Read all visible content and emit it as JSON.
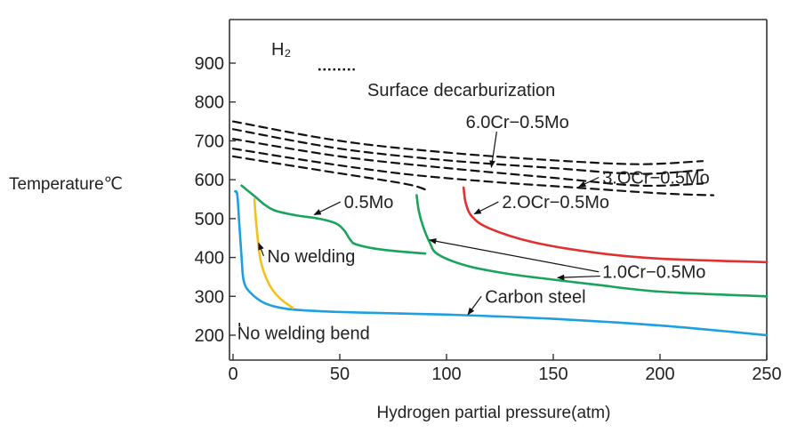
{
  "chart_data": {
    "type": "line",
    "title": "",
    "xlabel": "Hydrogen partial pressure(atm)",
    "ylabel": "Temperature℃",
    "xlim": [
      0,
      250
    ],
    "ylim": [
      160,
      1000
    ],
    "xticks": [
      "0",
      "50",
      "100",
      "150",
      "200",
      "250"
    ],
    "yticks": [
      "200",
      "300",
      "400",
      "500",
      "600",
      "700",
      "800",
      "900"
    ],
    "x_tick_values": [
      0,
      50,
      100,
      150,
      200,
      250
    ],
    "y_tick_values": [
      200,
      300,
      400,
      500,
      600,
      700,
      800,
      900
    ],
    "legend": {
      "label": "Surface decarburization",
      "style": "dotted"
    },
    "gas_label": "H₂",
    "grid": false,
    "colors": {
      "carbon_steel": "#1e9fe0",
      "no_welding": "#f2c21b",
      "mo_05": "#1aa35a",
      "cr_10": "#1aa35a",
      "cr_20": "#e23030",
      "dashed": "#111111"
    },
    "series": [
      {
        "name": "Carbon steel",
        "style": "solid",
        "color_key": "carbon_steel",
        "points": [
          [
            1,
            570
          ],
          [
            2,
            560
          ],
          [
            3,
            480
          ],
          [
            4,
            400
          ],
          [
            5,
            340
          ],
          [
            8,
            310
          ],
          [
            15,
            282
          ],
          [
            25,
            268
          ],
          [
            40,
            262
          ],
          [
            60,
            258
          ],
          [
            100,
            253
          ],
          [
            150,
            242
          ],
          [
            200,
            225
          ],
          [
            250,
            200
          ]
        ]
      },
      {
        "name": "No welding",
        "style": "solid",
        "color_key": "no_welding",
        "points": [
          [
            10,
            550
          ],
          [
            11,
            480
          ],
          [
            13,
            390
          ],
          [
            17,
            330
          ],
          [
            22,
            295
          ],
          [
            28,
            270
          ]
        ]
      },
      {
        "name": "0.5Mo",
        "style": "solid",
        "color_key": "mo_05",
        "points": [
          [
            4,
            585
          ],
          [
            10,
            558
          ],
          [
            15,
            535
          ],
          [
            20,
            520
          ],
          [
            30,
            508
          ],
          [
            40,
            500
          ],
          [
            48,
            488
          ],
          [
            52,
            470
          ],
          [
            55,
            445
          ],
          [
            58,
            433
          ],
          [
            70,
            420
          ],
          [
            90,
            410
          ]
        ]
      },
      {
        "name": "1.0Cr-0.5Mo",
        "style": "solid",
        "color_key": "cr_10",
        "points": [
          [
            86,
            560
          ],
          [
            87,
            520
          ],
          [
            89,
            480
          ],
          [
            92,
            440
          ],
          [
            96,
            408
          ],
          [
            110,
            378
          ],
          [
            130,
            357
          ],
          [
            150,
            343
          ],
          [
            170,
            330
          ],
          [
            200,
            312
          ],
          [
            250,
            300
          ]
        ]
      },
      {
        "name": "2.0Cr-0.5Mo",
        "style": "solid",
        "color_key": "cr_20",
        "points": [
          [
            108,
            580
          ],
          [
            109,
            540
          ],
          [
            112,
            505
          ],
          [
            120,
            475
          ],
          [
            140,
            440
          ],
          [
            170,
            412
          ],
          [
            200,
            397
          ],
          [
            250,
            388
          ]
        ]
      },
      {
        "name": "6.0Cr-0.5Mo",
        "style": "dashed",
        "color_key": "dashed",
        "points": [
          [
            0,
            750
          ],
          [
            50,
            700
          ],
          [
            100,
            670
          ],
          [
            150,
            650
          ],
          [
            190,
            640
          ],
          [
            220,
            648
          ]
        ]
      },
      {
        "name": "3.0Cr-0.5Mo",
        "style": "dashed",
        "color_key": "dashed",
        "points": [
          [
            0,
            730
          ],
          [
            50,
            680
          ],
          [
            100,
            650
          ],
          [
            150,
            630
          ],
          [
            190,
            615
          ],
          [
            220,
            625
          ]
        ]
      },
      {
        "name": "",
        "style": "dashed",
        "color_key": "dashed",
        "points": [
          [
            0,
            705
          ],
          [
            50,
            660
          ],
          [
            100,
            630
          ],
          [
            150,
            605
          ],
          [
            190,
            585
          ],
          [
            220,
            590
          ]
        ]
      },
      {
        "name": "",
        "style": "dashed",
        "color_key": "dashed",
        "points": [
          [
            0,
            680
          ],
          [
            40,
            645
          ],
          [
            80,
            615
          ],
          [
            120,
            595
          ],
          [
            160,
            580
          ],
          [
            200,
            565
          ],
          [
            225,
            560
          ]
        ]
      },
      {
        "name": "",
        "style": "dashed",
        "color_key": "dashed",
        "points": [
          [
            0,
            660
          ],
          [
            40,
            625
          ],
          [
            80,
            590
          ],
          [
            90,
            575
          ]
        ]
      }
    ],
    "annotations": [
      {
        "text": "6.0Cr−0.5Mo",
        "x": 109,
        "y": 733,
        "arrow_to": [
          121,
          632
        ]
      },
      {
        "text": "3.OCr−0.5Mo",
        "x": 173,
        "y": 590,
        "arrow_to": [
          162,
          582
        ]
      },
      {
        "text": "2.OCr−0.5Mo",
        "x": 126,
        "y": 527,
        "arrow_to": [
          113,
          512
        ]
      },
      {
        "text": "0.5Mo",
        "x": 52,
        "y": 527,
        "arrow_to": [
          38,
          510
        ]
      },
      {
        "text": "1.0Cr−0.5Mo",
        "x": 173,
        "y": 347,
        "arrow_to": [
          92,
          445
        ]
      },
      {
        "text": "No welding",
        "x": 16,
        "y": 388,
        "arrow_to": [
          12,
          437
        ]
      },
      {
        "text": "Carbon steel",
        "x": 118,
        "y": 284,
        "arrow_to": [
          110,
          253
        ]
      },
      {
        "text": "No welding bend",
        "x": 2,
        "y": 190,
        "arrow_to": null
      }
    ]
  }
}
